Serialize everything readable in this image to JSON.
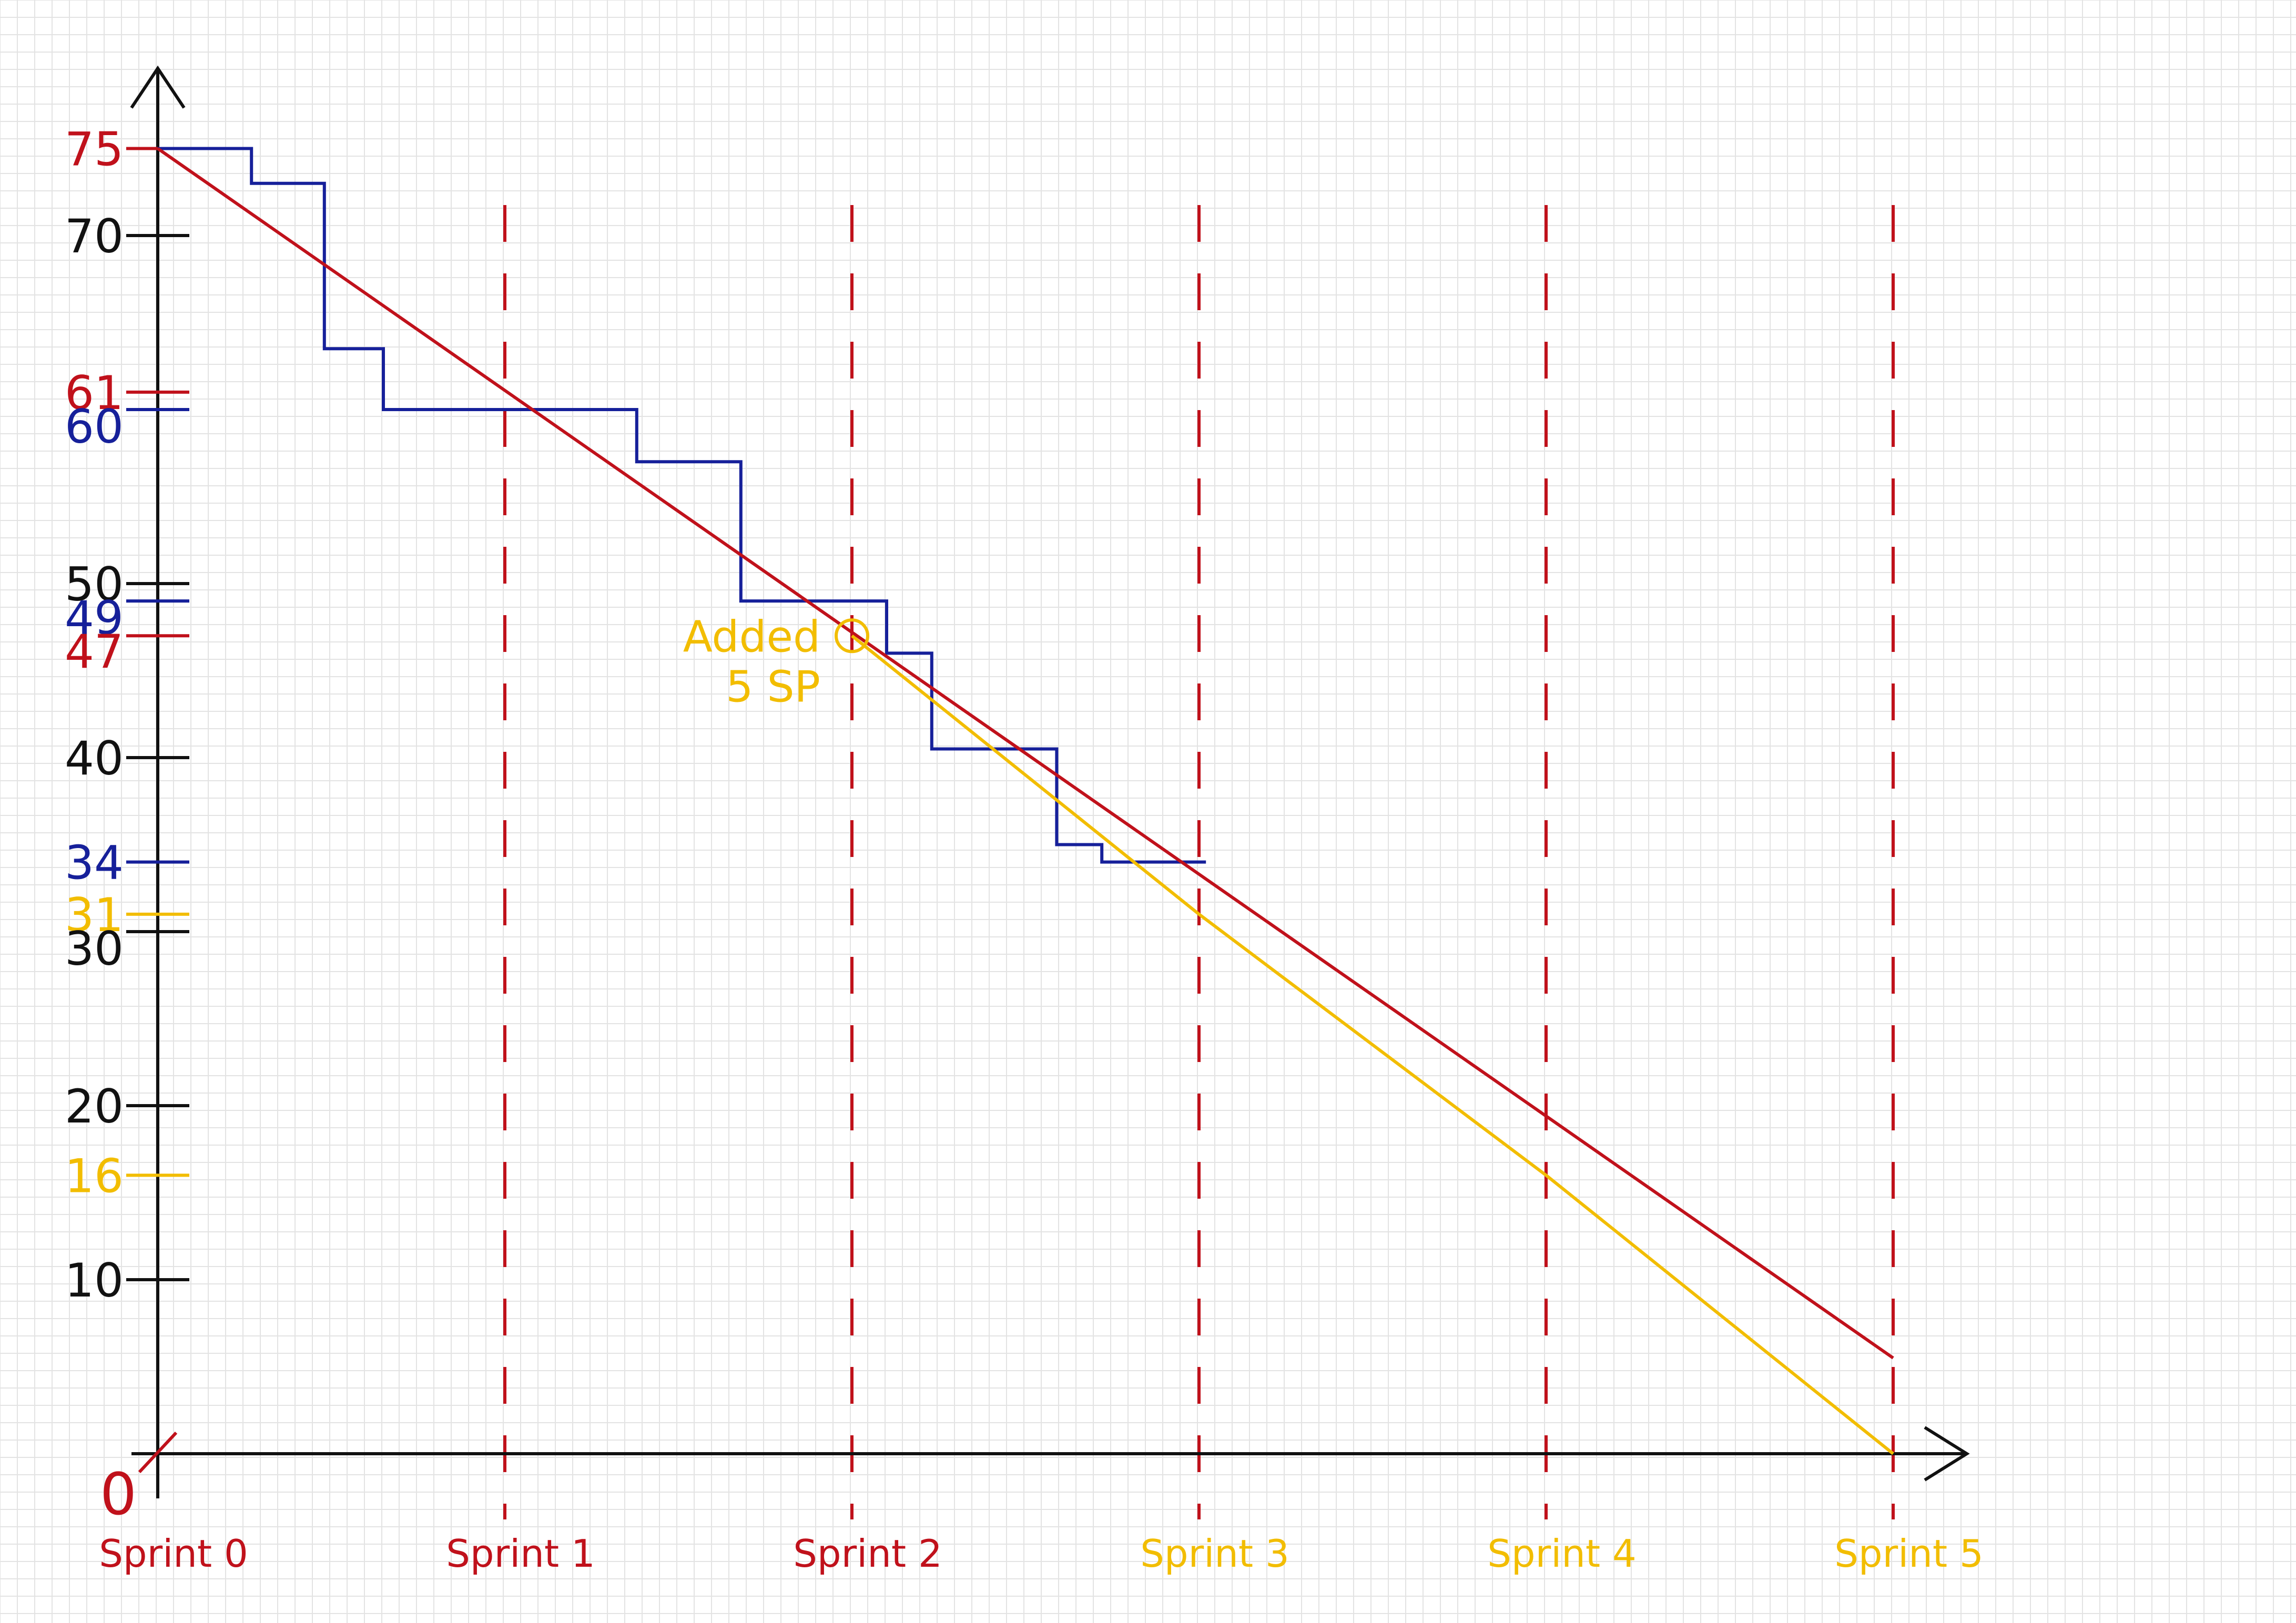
{
  "colors": {
    "grid": "#e3e3e3",
    "axis": "#111111",
    "red": "#c0111b",
    "blue": "#16209a",
    "yellow": "#f2bd00"
  },
  "chart_data": {
    "type": "line",
    "title": "",
    "xlabel": "",
    "ylabel": "",
    "xlim": [
      0,
      5.25
    ],
    "ylim": [
      0,
      80
    ],
    "grid": true,
    "x_tick_labels": [
      {
        "x": 0,
        "text": "Sprint 0",
        "color": "red"
      },
      {
        "x": 1,
        "text": "Sprint 1",
        "color": "red"
      },
      {
        "x": 2,
        "text": "Sprint 2",
        "color": "red"
      },
      {
        "x": 3,
        "text": "Sprint 3",
        "color": "yellow"
      },
      {
        "x": 4,
        "text": "Sprint 4",
        "color": "yellow"
      },
      {
        "x": 5,
        "text": "Sprint 5",
        "color": "yellow"
      }
    ],
    "y_ticks": [
      {
        "y": 75,
        "text": "75",
        "color": "red"
      },
      {
        "y": 70,
        "text": "70",
        "color": "axis"
      },
      {
        "y": 61,
        "text": "61",
        "color": "red"
      },
      {
        "y": 60,
        "text": "60",
        "color": "blue"
      },
      {
        "y": 50,
        "text": "50",
        "color": "axis"
      },
      {
        "y": 49,
        "text": "49",
        "color": "blue"
      },
      {
        "y": 47,
        "text": "47",
        "color": "red"
      },
      {
        "y": 40,
        "text": "40",
        "color": "axis"
      },
      {
        "y": 34,
        "text": "34",
        "color": "blue"
      },
      {
        "y": 31,
        "text": "31",
        "color": "yellow"
      },
      {
        "y": 30,
        "text": "30",
        "color": "axis"
      },
      {
        "y": 20,
        "text": "20",
        "color": "axis"
      },
      {
        "y": 16,
        "text": "16",
        "color": "yellow"
      },
      {
        "y": 10,
        "text": "10",
        "color": "axis"
      }
    ],
    "origin_label": "0",
    "sprint_dividers_x": [
      1,
      2,
      3,
      4,
      5
    ],
    "series": [
      {
        "color": "blue",
        "style": "step",
        "points": [
          [
            0,
            75
          ],
          [
            0.27,
            75
          ],
          [
            0.27,
            73
          ],
          [
            0.48,
            73
          ],
          [
            0.48,
            63.5
          ],
          [
            0.65,
            63.5
          ],
          [
            0.65,
            60
          ],
          [
            1.38,
            60
          ],
          [
            1.38,
            57
          ],
          [
            1.68,
            57
          ],
          [
            1.68,
            49
          ],
          [
            2.1,
            49
          ],
          [
            2.1,
            46
          ],
          [
            2.23,
            46
          ],
          [
            2.23,
            40.5
          ],
          [
            2.59,
            40.5
          ],
          [
            2.59,
            35
          ],
          [
            2.72,
            35
          ],
          [
            2.72,
            34
          ],
          [
            3.02,
            34
          ]
        ]
      },
      {
        "color": "red",
        "style": "line",
        "points": [
          [
            0,
            75
          ],
          [
            5,
            5.5
          ]
        ]
      },
      {
        "color": "yellow",
        "style": "line",
        "points": [
          [
            2,
            47
          ],
          [
            3,
            31
          ],
          [
            4,
            16
          ],
          [
            5,
            0
          ]
        ]
      }
    ],
    "annotations": [
      {
        "x": 2,
        "y": 47,
        "lines": [
          "Added",
          "5 SP"
        ],
        "color": "yellow"
      }
    ]
  }
}
